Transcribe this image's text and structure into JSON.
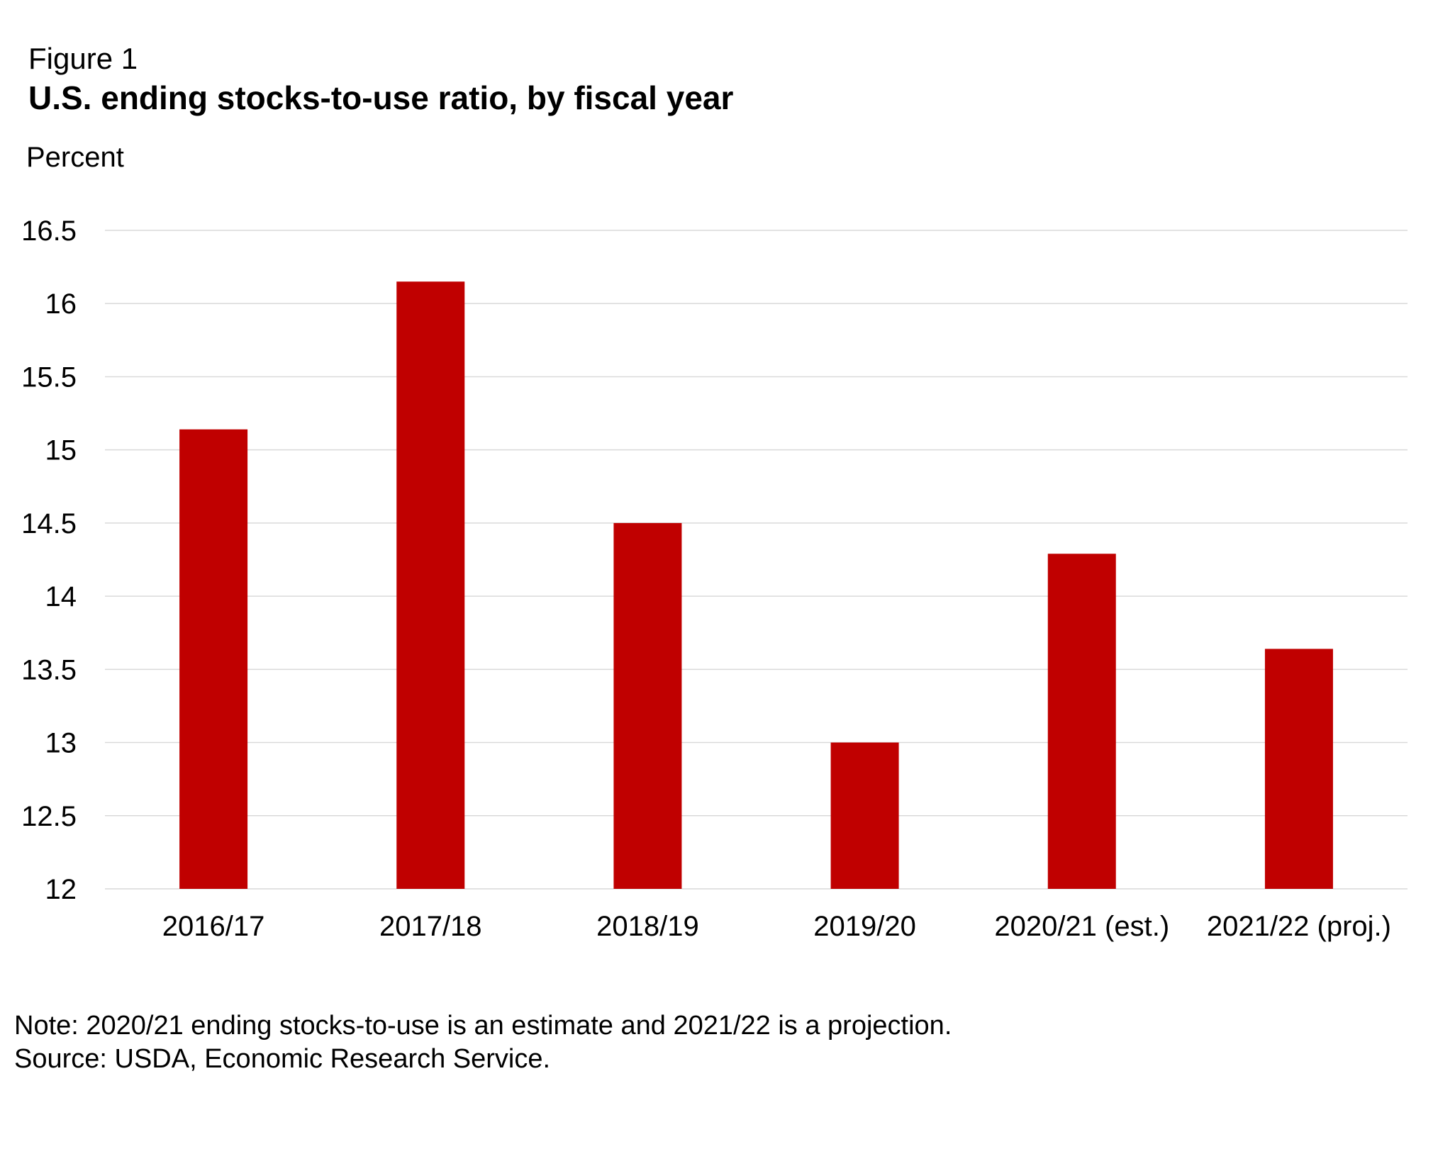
{
  "chart_data": {
    "type": "bar",
    "figure_label": "Figure 1",
    "title": "U.S. ending stocks-to-use ratio, by fiscal year",
    "ylabel": "Percent",
    "xlabel": "",
    "categories": [
      "2016/17",
      "2017/18",
      "2018/19",
      "2019/20",
      "2020/21 (est.)",
      "2021/22 (proj.)"
    ],
    "values": [
      15.14,
      16.15,
      14.5,
      13.0,
      14.29,
      13.64
    ],
    "ylim": [
      12,
      16.5
    ],
    "yticks": [
      "12",
      "12.5",
      "13",
      "13.5",
      "14",
      "14.5",
      "15",
      "15.5",
      "16",
      "16.5"
    ],
    "grid": true,
    "legend": "none",
    "bar_color": "#c00000",
    "grid_color": "#d9d9d9",
    "note": "Note: 2020/21 ending stocks-to-use is an estimate and 2021/22 is a projection.",
    "source": "Source: USDA, Economic Research Service."
  }
}
